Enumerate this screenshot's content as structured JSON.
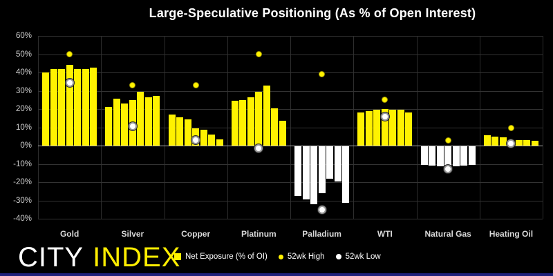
{
  "logo": {
    "city": "CITY",
    "index": "INDEX"
  },
  "colors": {
    "background": "#000000",
    "bar_positive": "#fff200",
    "bar_negative": "#ffffff",
    "high_dot": "#fff200",
    "low_dot": "#ffffff",
    "grid": "#333333",
    "zero_line": "#b8b8b8",
    "text": "#d9d9d9",
    "accent_strip": "#20207a"
  },
  "chart_data": {
    "type": "bar",
    "title": "Large-Speculative Positioning (As % of Open Interest)",
    "xlabel": "",
    "ylabel": "",
    "ylim": [
      -40,
      60
    ],
    "ytick_step": 10,
    "ytick_labels": [
      "60%",
      "50%",
      "40%",
      "30%",
      "20%",
      "10%",
      "0%",
      "-10%",
      "-20%",
      "-30%",
      "-40%"
    ],
    "grid": true,
    "legend_position": "bottom",
    "bars_per_group": 7,
    "categories": [
      "Gold",
      "Silver",
      "Copper",
      "Platinum",
      "Palladium",
      "WTI",
      "Natural Gas",
      "Heating Oil"
    ],
    "groups": [
      {
        "label": "Gold",
        "values": [
          40,
          42,
          42,
          44,
          42,
          42,
          42.5
        ],
        "high_52wk": 50,
        "low_52wk": 34.5
      },
      {
        "label": "Silver",
        "values": [
          21,
          25.5,
          23,
          25,
          29.5,
          26.5,
          27
        ],
        "high_52wk": 33,
        "low_52wk": 10.5
      },
      {
        "label": "Copper",
        "values": [
          17,
          15.5,
          14.5,
          9.5,
          8.5,
          6,
          3.5
        ],
        "high_52wk": 33,
        "low_52wk": 3
      },
      {
        "label": "Platinum",
        "values": [
          24.5,
          25,
          26.5,
          29.5,
          33,
          20.5,
          13.5
        ],
        "high_52wk": 50,
        "low_52wk": -1.5
      },
      {
        "label": "Palladium",
        "values": [
          -27.5,
          -29.5,
          -32,
          -26,
          -18,
          -19.5,
          -31.5
        ],
        "high_52wk": 39,
        "low_52wk": -35
      },
      {
        "label": "WTI",
        "values": [
          18,
          19,
          19.5,
          20,
          19.5,
          19.5,
          18
        ],
        "high_52wk": 25,
        "low_52wk": 16
      },
      {
        "label": "Natural Gas",
        "values": [
          -10.5,
          -11,
          -11.5,
          -12,
          -11.5,
          -11,
          -10.5
        ],
        "high_52wk": 3,
        "low_52wk": -13
      },
      {
        "label": "Heating Oil",
        "values": [
          5.5,
          5,
          4.5,
          2.5,
          3,
          3,
          2.5
        ],
        "high_52wk": 9.5,
        "low_52wk": 1
      }
    ],
    "legend": [
      {
        "label": "Net Exposure (% of OI)",
        "marker": "square",
        "color": "#fff200"
      },
      {
        "label": "52wk High",
        "marker": "dot",
        "color": "#fff200"
      },
      {
        "label": "52wk Low",
        "marker": "dot-low",
        "color": "#ffffff"
      }
    ]
  }
}
